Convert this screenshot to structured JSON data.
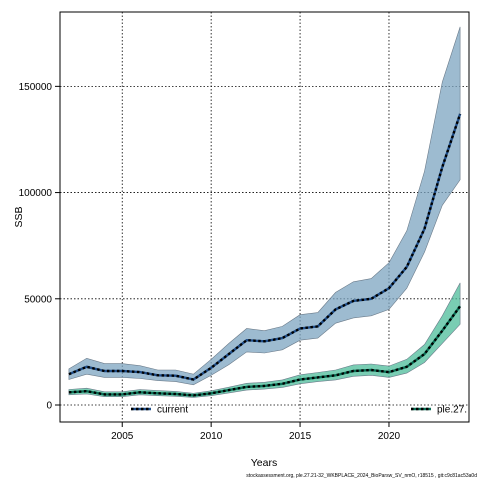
{
  "chart_data": {
    "type": "line",
    "xlabel": "Years",
    "ylabel": "SSB",
    "xlim": [
      2001.5,
      2024.5
    ],
    "ylim": [
      -8000,
      185000
    ],
    "xticks": [
      2005,
      2010,
      2015,
      2020
    ],
    "yticks": [
      0,
      50000,
      100000,
      150000
    ],
    "grid": true,
    "x": [
      2002,
      2003,
      2004,
      2005,
      2006,
      2007,
      2008,
      2009,
      2010,
      2011,
      2012,
      2013,
      2014,
      2015,
      2016,
      2017,
      2018,
      2019,
      2020,
      2021,
      2022,
      2023,
      2024
    ],
    "series": [
      {
        "name": "current",
        "color": "#7ca4c0",
        "line_color": "#1f4e8a",
        "values": [
          14500,
          18000,
          16000,
          16000,
          15500,
          14000,
          13800,
          12000,
          17500,
          24000,
          30500,
          30000,
          31500,
          36000,
          37000,
          45000,
          49000,
          50000,
          55000,
          65000,
          83000,
          112000,
          137000
        ],
        "lower": [
          12000,
          14500,
          13000,
          13000,
          12500,
          11500,
          11000,
          9500,
          14000,
          19000,
          25000,
          24500,
          26000,
          30500,
          31500,
          38500,
          41000,
          42000,
          45000,
          55000,
          72000,
          94000,
          106000
        ],
        "upper": [
          17000,
          22000,
          19500,
          19500,
          18500,
          16500,
          16500,
          14500,
          21500,
          29000,
          36000,
          35000,
          37000,
          42500,
          43500,
          53000,
          58000,
          59500,
          67000,
          82000,
          110000,
          152000,
          178000
        ]
      },
      {
        "name": "ple.27.",
        "color": "#4cbc9a",
        "line_color": "#0a6e55",
        "values": [
          6000,
          6500,
          5000,
          5000,
          6000,
          5500,
          5200,
          4500,
          5500,
          7000,
          8500,
          9000,
          10000,
          12000,
          13000,
          14000,
          16000,
          16500,
          15500,
          18000,
          24000,
          35000,
          46500
        ],
        "lower": [
          4800,
          5200,
          3900,
          3900,
          4800,
          4400,
          4100,
          3600,
          4400,
          5700,
          7000,
          7500,
          8300,
          10000,
          11000,
          11800,
          13500,
          14000,
          13000,
          15000,
          20000,
          29000,
          38000
        ],
        "upper": [
          7300,
          7900,
          6200,
          6200,
          7300,
          6800,
          6400,
          5500,
          6700,
          8400,
          10200,
          10700,
          11800,
          14200,
          15300,
          16500,
          18900,
          19300,
          18300,
          21500,
          28500,
          42000,
          57500
        ]
      }
    ]
  },
  "footer": "stockassessment.org, ple.27.21-32_WKBPLACE_2024_BioParsw_SV_nmO, r18515 , git:c9c81ac53a0d"
}
